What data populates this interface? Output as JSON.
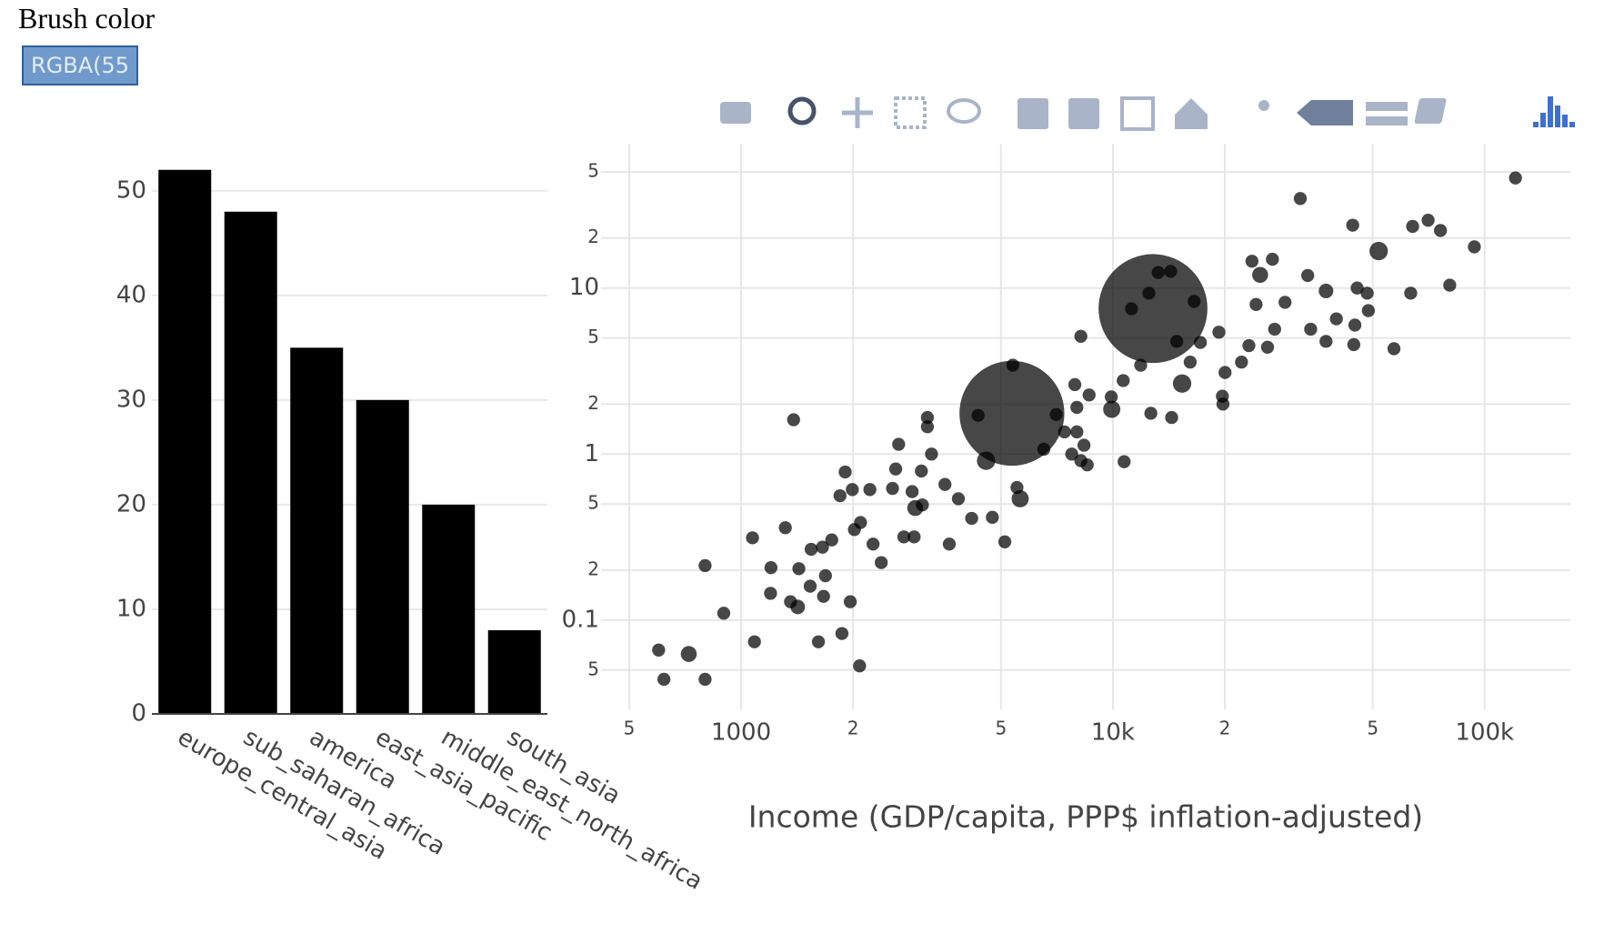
{
  "controls": {
    "label": "Brush color",
    "button": "RGBA(55"
  },
  "chart_data": [
    {
      "type": "bar",
      "categories": [
        "europe_central_asia",
        "sub_saharan_africa",
        "america",
        "east_asia_pacific",
        "middle_east_north_africa",
        "south_asia"
      ],
      "values": [
        52,
        48,
        35,
        30,
        20,
        8
      ],
      "color": "#000000",
      "ylim": [
        0,
        54.5
      ],
      "yticks": [
        0,
        10,
        20,
        30,
        40,
        50
      ],
      "grid": true
    },
    {
      "type": "scatter",
      "x_label": "Income (GDP/capita, PPP$ inflation-adjusted)",
      "xlog": true,
      "ylog": true,
      "grid": true,
      "color": "#000000",
      "opacity": 0.72,
      "xlim": [
        420,
        170000
      ],
      "xticks": [
        {
          "value": 500,
          "label": "5"
        },
        1000,
        {
          "value": 2000,
          "label": "2"
        },
        {
          "value": 5000,
          "label": "5"
        },
        {
          "value": 10000,
          "label": "10k"
        },
        {
          "value": 20000,
          "label": "2"
        },
        {
          "value": 50000,
          "label": "5"
        },
        {
          "value": 100000,
          "label": "100k"
        }
      ],
      "ylim": [
        0.029,
        74
      ],
      "yticks": [
        {
          "value": 0.05,
          "label": "5"
        },
        0.1,
        {
          "value": 0.2,
          "label": "2"
        },
        {
          "value": 0.5,
          "label": "5"
        },
        1,
        {
          "value": 2,
          "label": "2"
        },
        {
          "value": 5,
          "label": "5"
        },
        10,
        {
          "value": 20,
          "label": "2"
        },
        {
          "value": 50,
          "label": "5"
        }
      ],
      "x": [
        600,
        620,
        723,
        800,
        800,
        898,
        1086,
        1073,
        1315,
        1384,
        1203,
        1200,
        1358,
        1420,
        1430,
        1543,
        1614,
        1534,
        1666,
        1686,
        1655,
        1753,
        1867,
        1966,
        2083,
        2017,
        2095,
        1905,
        1845,
        1991,
        2220,
        2264,
        2382,
        2554,
        2653,
        2605,
        2740,
        2884,
        2940,
        3073,
        2920,
        3170,
        3170,
        3252,
        3054,
        3534,
        3840,
        3630,
        4170,
        4740,
        5120,
        5350,
        4560,
        5630,
        5520,
        5380,
        4340,
        6520,
        7040,
        7410,
        7750,
        8200,
        8530,
        8000,
        8000,
        8360,
        7900,
        8630,
        8200,
        9930,
        9900,
        10720,
        10660,
        12650,
        12820,
        11880,
        11220,
        13240,
        14300,
        12500,
        16540,
        15350,
        14390,
        14850,
        16140,
        17190,
        19280,
        20030,
        19770,
        19700,
        22180,
        23660,
        24890,
        26860,
        24270,
        23220,
        26060,
        27230,
        29040,
        31920,
        33420,
        37430,
        37430,
        34040,
        39910,
        44160,
        44460,
        45390,
        44760,
        51860,
        48650,
        57020,
        63240,
        64000,
        70460,
        76040,
        80540,
        93800,
        121000,
        48300
      ],
      "values": [
        0.066,
        0.044,
        0.0625,
        0.044,
        0.213,
        0.11,
        0.074,
        0.313,
        0.36,
        1.61,
        0.207,
        0.145,
        0.129,
        0.12,
        0.204,
        0.267,
        0.074,
        0.16,
        0.139,
        0.185,
        0.275,
        0.304,
        0.083,
        0.129,
        0.053,
        0.351,
        0.387,
        0.78,
        0.561,
        0.611,
        0.611,
        0.287,
        0.222,
        0.621,
        1.145,
        0.813,
        0.317,
        0.594,
        0.473,
        0.494,
        0.317,
        1.66,
        1.46,
        1.0,
        0.79,
        0.656,
        0.538,
        0.287,
        0.41,
        0.416,
        0.296,
        1.76,
        0.912,
        0.538,
        0.629,
        3.43,
        1.71,
        1.07,
        1.73,
        1.36,
        1.0,
        0.912,
        0.861,
        1.36,
        1.91,
        1.13,
        2.62,
        2.27,
        5.12,
        1.86,
        2.21,
        0.899,
        2.77,
        1.76,
        7.52,
        3.43,
        7.5,
        12.4,
        12.6,
        9.31,
        8.31,
        2.66,
        1.66,
        4.77,
        3.58,
        4.7,
        5.42,
        3.1,
        2.0,
        2.23,
        3.58,
        14.5,
        12.0,
        14.9,
        7.96,
        4.5,
        4.4,
        5.65,
        8.2,
        34.6,
        11.9,
        9.6,
        4.77,
        5.65,
        6.52,
        23.9,
        4.56,
        10,
        5.98,
        16.7,
        7.31,
        4.31,
        9.31,
        23.5,
        25.6,
        22.2,
        10.4,
        17.7,
        46,
        9.31
      ],
      "sizes": [
        20,
        20,
        30,
        20,
        20,
        20,
        20,
        20,
        20,
        20,
        20,
        20,
        20,
        25,
        20,
        20,
        20,
        20,
        20,
        20,
        20,
        20,
        20,
        20,
        20,
        20,
        20,
        20,
        20,
        20,
        20,
        20,
        20,
        20,
        20,
        20,
        20,
        20,
        30,
        20,
        20,
        20,
        20,
        20,
        20,
        20,
        20,
        20,
        20,
        20,
        20,
        1300,
        40,
        35,
        20,
        20,
        20,
        20,
        20,
        20,
        20,
        20,
        20,
        20,
        20,
        20,
        20,
        20,
        20,
        35,
        20,
        20,
        20,
        20,
        1400,
        20,
        20,
        20,
        20,
        20,
        20,
        40,
        20,
        20,
        20,
        20,
        20,
        20,
        20,
        20,
        20,
        20,
        30,
        20,
        20,
        20,
        20,
        20,
        20,
        20,
        20,
        25,
        20,
        20,
        20,
        20,
        20,
        20,
        20,
        40,
        20,
        20,
        20,
        20,
        20,
        20,
        20,
        20,
        20,
        20
      ]
    }
  ]
}
